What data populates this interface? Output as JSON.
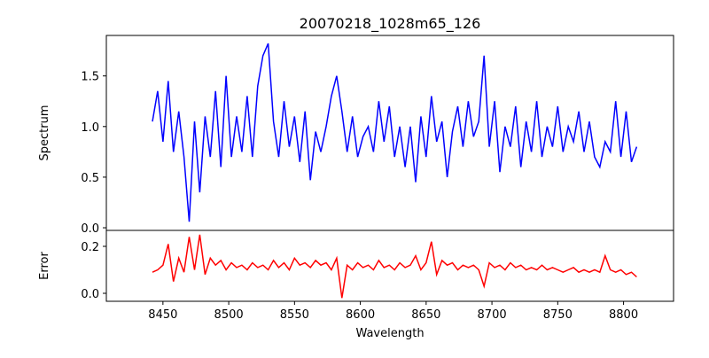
{
  "chart_data": [
    {
      "type": "line",
      "title": "20070218_1028m65_126",
      "xlabel": "",
      "ylabel": "Spectrum",
      "color": "#0000ff",
      "xlim": [
        8407,
        8838
      ],
      "ylim": [
        -0.026,
        1.9
      ],
      "yticks": [
        "0.0",
        "0.5",
        "1.0",
        "1.5"
      ],
      "ytick_values": [
        0,
        0.5,
        1.0,
        1.5
      ],
      "x_start": 8442,
      "x_step": 4,
      "values": [
        1.05,
        1.35,
        0.85,
        1.45,
        0.75,
        1.15,
        0.7,
        0.06,
        1.05,
        0.35,
        1.1,
        0.7,
        1.35,
        0.6,
        1.5,
        0.7,
        1.1,
        0.75,
        1.3,
        0.7,
        1.4,
        1.7,
        1.82,
        1.05,
        0.7,
        1.25,
        0.8,
        1.1,
        0.65,
        1.15,
        0.47,
        0.95,
        0.75,
        1.0,
        1.3,
        1.5,
        1.15,
        0.75,
        1.1,
        0.7,
        0.9,
        1.0,
        0.75,
        1.25,
        0.85,
        1.2,
        0.7,
        1.0,
        0.6,
        1.0,
        0.45,
        1.1,
        0.7,
        1.3,
        0.85,
        1.05,
        0.5,
        0.95,
        1.2,
        0.8,
        1.25,
        0.9,
        1.05,
        1.7,
        0.8,
        1.25,
        0.55,
        1.0,
        0.8,
        1.2,
        0.6,
        1.05,
        0.75,
        1.25,
        0.7,
        1.0,
        0.8,
        1.2,
        0.75,
        1.0,
        0.85,
        1.15,
        0.75,
        1.05,
        0.7,
        0.6,
        0.85,
        0.75,
        1.25,
        0.7,
        1.15,
        0.65,
        0.8
      ]
    },
    {
      "type": "line",
      "xlabel": "Wavelength",
      "ylabel": "Error",
      "color": "#ff0000",
      "xlim": [
        8407,
        8838
      ],
      "ylim": [
        -0.034,
        0.268
      ],
      "xticks": [
        "8450",
        "8500",
        "8550",
        "8600",
        "8650",
        "8700",
        "8750",
        "8800"
      ],
      "xtick_values": [
        8450,
        8500,
        8550,
        8600,
        8650,
        8700,
        8750,
        8800
      ],
      "yticks": [
        "0.0",
        "0.2"
      ],
      "ytick_values": [
        0,
        0.2
      ],
      "x_start": 8442,
      "x_step": 4,
      "values": [
        0.09,
        0.1,
        0.12,
        0.21,
        0.05,
        0.15,
        0.09,
        0.24,
        0.1,
        0.25,
        0.08,
        0.15,
        0.12,
        0.14,
        0.1,
        0.13,
        0.11,
        0.12,
        0.1,
        0.13,
        0.11,
        0.12,
        0.1,
        0.14,
        0.11,
        0.13,
        0.1,
        0.15,
        0.12,
        0.13,
        0.11,
        0.14,
        0.12,
        0.13,
        0.1,
        0.15,
        -0.02,
        0.12,
        0.1,
        0.13,
        0.11,
        0.12,
        0.1,
        0.14,
        0.11,
        0.12,
        0.1,
        0.13,
        0.11,
        0.12,
        0.16,
        0.1,
        0.13,
        0.22,
        0.08,
        0.14,
        0.12,
        0.13,
        0.1,
        0.12,
        0.11,
        0.12,
        0.1,
        0.03,
        0.13,
        0.11,
        0.12,
        0.1,
        0.13,
        0.11,
        0.12,
        0.1,
        0.11,
        0.1,
        0.12,
        0.1,
        0.11,
        0.1,
        0.09,
        0.1,
        0.11,
        0.09,
        0.1,
        0.09,
        0.1,
        0.09,
        0.16,
        0.1,
        0.09,
        0.1,
        0.08,
        0.09,
        0.07
      ]
    }
  ]
}
